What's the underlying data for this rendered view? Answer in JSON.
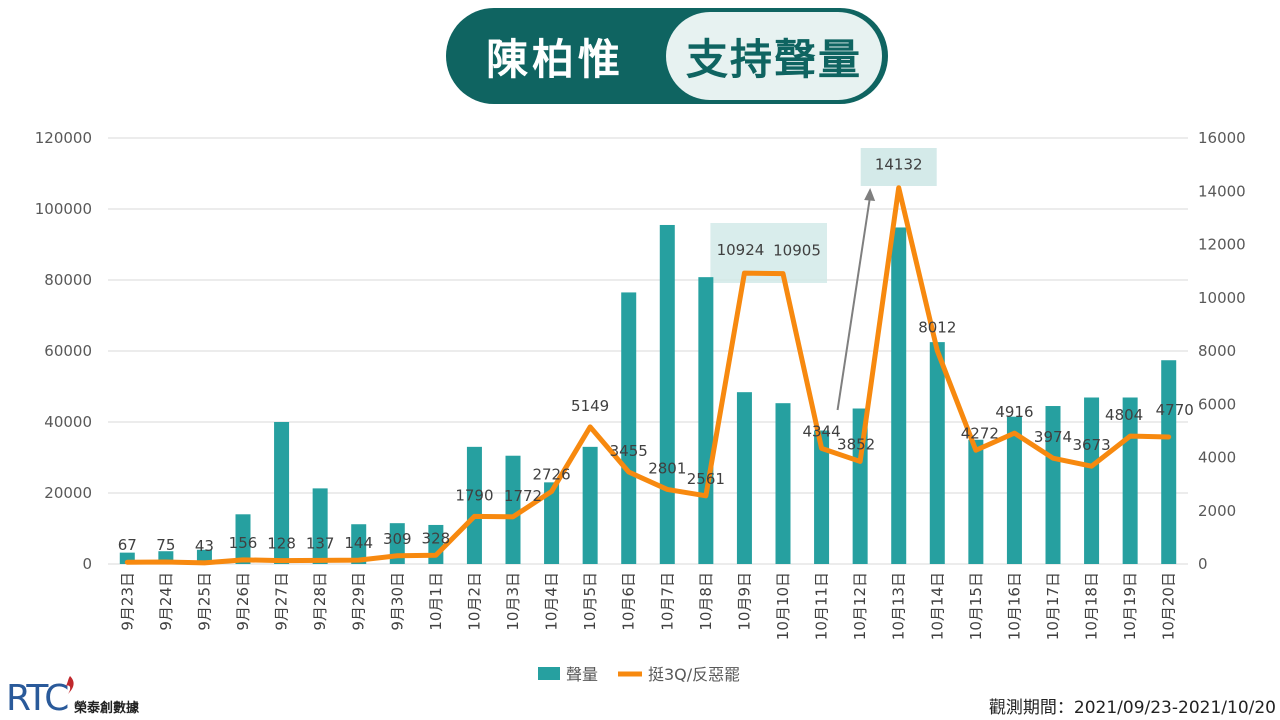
{
  "header": {
    "name": "陳柏惟",
    "metric": "支持聲量"
  },
  "footer": {
    "logo_text": "RTC",
    "logo_sub": "榮泰創數據",
    "period": "觀測期間：2021/09/23-2021/10/20"
  },
  "colors": {
    "bar": "#26a0a0",
    "line": "#f7890f",
    "header": "#0f6461",
    "highlight": "#cfe8e7"
  },
  "chart_data": {
    "type": "bar",
    "categories": [
      "9月23日",
      "9月24日",
      "9月25日",
      "9月26日",
      "9月27日",
      "9月28日",
      "9月29日",
      "9月30日",
      "10月1日",
      "10月2日",
      "10月3日",
      "10月4日",
      "10月5日",
      "10月6日",
      "10月7日",
      "10月8日",
      "10月9日",
      "10月10日",
      "10月11日",
      "10月12日",
      "10月13日",
      "10月14日",
      "10月15日",
      "10月16日",
      "10月17日",
      "10月18日",
      "10月19日",
      "10月20日"
    ],
    "series": [
      {
        "name": "聲量",
        "type": "bar",
        "axis": "left",
        "values": [
          3200,
          3600,
          4000,
          14000,
          40000,
          21300,
          11200,
          11500,
          11000,
          33000,
          30500,
          23000,
          33000,
          76500,
          95500,
          80800,
          48400,
          45300,
          37600,
          43800,
          94800,
          62500,
          35000,
          41500,
          44500,
          46900,
          46900,
          57400
        ]
      },
      {
        "name": "挺3Q/反惡罷",
        "type": "line",
        "axis": "right",
        "values": [
          67,
          75,
          43,
          156,
          128,
          137,
          144,
          309,
          328,
          1790,
          1772,
          2726,
          5149,
          3455,
          2801,
          2561,
          10924,
          10905,
          4344,
          3852,
          14132,
          8012,
          4272,
          4916,
          3974,
          3673,
          4804,
          4770
        ]
      }
    ],
    "y_left": {
      "min": 0,
      "max": 120000,
      "ticks": [
        0,
        20000,
        40000,
        60000,
        80000,
        100000,
        120000
      ]
    },
    "y_right": {
      "min": 0,
      "max": 16000,
      "ticks": [
        0,
        2000,
        4000,
        6000,
        8000,
        10000,
        12000,
        14000,
        16000
      ]
    },
    "grid": true,
    "legend": "bottom"
  }
}
